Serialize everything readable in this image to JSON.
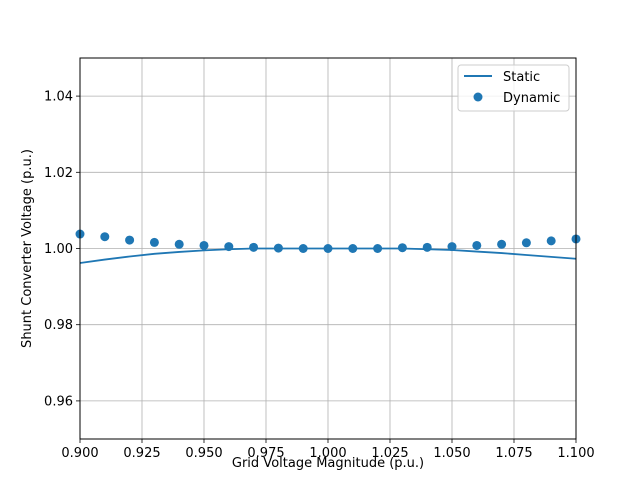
{
  "chart_data": {
    "type": "line",
    "xlabel": "Grid Voltage Magnitude (p.u.)",
    "ylabel": "Shunt Converter Voltage (p.u.)",
    "xlim": [
      0.9,
      1.1
    ],
    "ylim": [
      0.95,
      1.05
    ],
    "xticks": [
      0.9,
      0.925,
      0.95,
      0.975,
      1.0,
      1.025,
      1.05,
      1.075,
      1.1
    ],
    "xtick_labels": [
      "0.900",
      "0.925",
      "0.950",
      "0.975",
      "1.000",
      "1.025",
      "1.050",
      "1.075",
      "1.100"
    ],
    "yticks": [
      0.96,
      0.98,
      1.0,
      1.02,
      1.04
    ],
    "ytick_labels": [
      "0.96",
      "0.98",
      "1.00",
      "1.02",
      "1.04"
    ],
    "grid": true,
    "legend_position": "top-right",
    "colors": {
      "series": "#1f77b4",
      "grid": "#b0b0b0",
      "axes": "#000000"
    },
    "series": [
      {
        "name": "Static",
        "kind": "line",
        "x": [
          0.9,
          0.91,
          0.92,
          0.93,
          0.94,
          0.95,
          0.96,
          0.97,
          0.98,
          0.99,
          1.0,
          1.01,
          1.02,
          1.03,
          1.04,
          1.05,
          1.06,
          1.07,
          1.08,
          1.09,
          1.1
        ],
        "y": [
          0.9962,
          0.9971,
          0.9979,
          0.9986,
          0.9991,
          0.9995,
          0.9998,
          1.0,
          1.0,
          1.0,
          1.0,
          1.0,
          1.0,
          1.0,
          0.9998,
          0.9996,
          0.9992,
          0.9988,
          0.9983,
          0.9978,
          0.9973
        ]
      },
      {
        "name": "Dynamic",
        "kind": "scatter",
        "x": [
          0.9,
          0.91,
          0.92,
          0.93,
          0.94,
          0.95,
          0.96,
          0.97,
          0.98,
          0.99,
          1.0,
          1.01,
          1.02,
          1.03,
          1.04,
          1.05,
          1.06,
          1.07,
          1.08,
          1.09,
          1.1
        ],
        "y": [
          1.0038,
          1.0031,
          1.0022,
          1.0016,
          1.0011,
          1.0008,
          1.0005,
          1.0003,
          1.0001,
          1.0,
          1.0,
          1.0,
          1.0,
          1.0002,
          1.0003,
          1.0005,
          1.0008,
          1.0011,
          1.0015,
          1.002,
          1.0025
        ]
      }
    ]
  }
}
